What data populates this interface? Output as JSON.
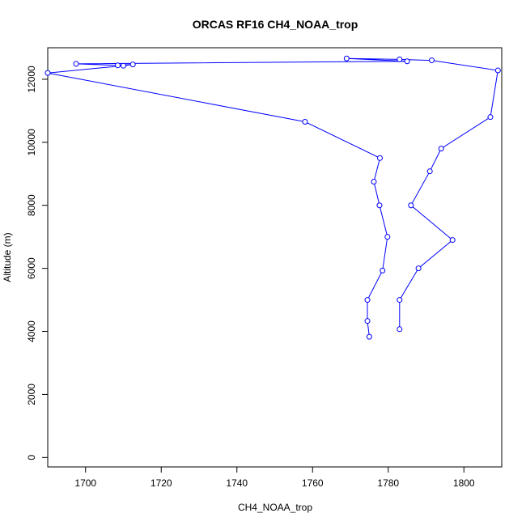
{
  "chart_data": {
    "type": "line",
    "title": "ORCAS RF16 CH4_NOAA_trop",
    "xlabel": "CH4_NOAA_trop",
    "ylabel": "Altitude (m)",
    "xlim": [
      1690,
      1810
    ],
    "ylim": [
      -300,
      13000
    ],
    "xticks": [
      1700,
      1720,
      1740,
      1760,
      1780,
      1800
    ],
    "yticks": [
      0,
      2000,
      4000,
      6000,
      8000,
      10000,
      12000
    ],
    "grid": false,
    "line_color": "#0000ff",
    "marker": "open-circle",
    "series": [
      {
        "x": [
          1775,
          1774.5,
          1774.5,
          1778.5,
          1779.8,
          1777.7,
          1776.2,
          1777.8,
          1758,
          1690,
          1710,
          1712.5,
          1708.5,
          1697.5,
          1785,
          1769,
          1783,
          1791.5,
          1809,
          1807,
          1794,
          1791,
          1786,
          1797,
          1788,
          1783,
          1783
        ],
        "y": [
          3830,
          4330,
          5000,
          5930,
          7000,
          8000,
          8750,
          9500,
          10650,
          12200,
          12430,
          12470,
          12440,
          12490,
          12570,
          12660,
          12630,
          12600,
          12280,
          10800,
          9800,
          9080,
          8000,
          6900,
          6000,
          5000,
          4070
        ]
      }
    ]
  }
}
